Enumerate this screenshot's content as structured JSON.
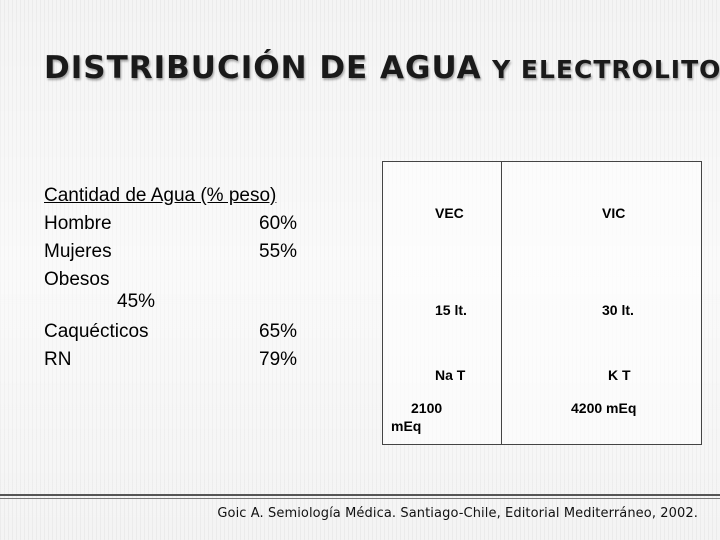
{
  "slide": {
    "title_part1": "DISTRIBUCIÓN DE AGUA",
    "title_part2": "Y ELECTROLITOS",
    "list": {
      "header": "Cantidad de Agua (% peso)",
      "items": [
        {
          "label": "Hombre",
          "value": "60%"
        },
        {
          "label": "Mujeres",
          "value": "55%"
        },
        {
          "label": "Obesos",
          "value": "45%"
        },
        {
          "label": "Caquécticos",
          "value": "65%"
        },
        {
          "label": "RN",
          "value": "79%"
        }
      ]
    },
    "table": {
      "vec": {
        "heading": "VEC",
        "volume": "15 lt.",
        "ion": "Na T",
        "meq": "2100 mEq"
      },
      "vic": {
        "heading": "VIC",
        "volume": "30 lt.",
        "ion": "K T",
        "meq": "4200 mEq"
      }
    },
    "citation": "Goic A. Semiología Médica. Santiago-Chile, Editorial Mediterráneo, 2002."
  }
}
